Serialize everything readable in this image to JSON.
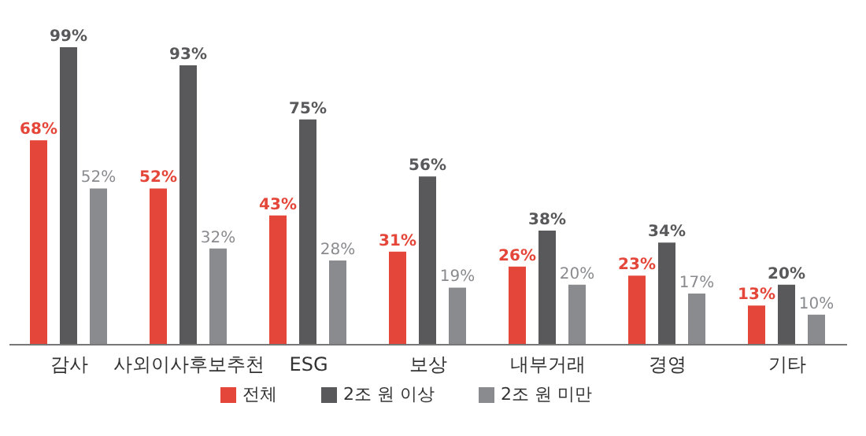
{
  "chart_data": {
    "type": "bar",
    "categories": [
      "감사",
      "사외이사후보추천",
      "ESG",
      "보상",
      "내부거래",
      "경영",
      "기타"
    ],
    "series": [
      {
        "name": "전체",
        "color": "#e4473a",
        "values": [
          68,
          52,
          43,
          31,
          26,
          23,
          13
        ],
        "value_labels": [
          "68%",
          "52%",
          "43%",
          "31%",
          "26%",
          "23%",
          "13%"
        ]
      },
      {
        "name": "2조 원 이상",
        "color": "#59595b",
        "values": [
          99,
          93,
          75,
          56,
          38,
          34,
          20
        ],
        "value_labels": [
          "99%",
          "93%",
          "75%",
          "56%",
          "38%",
          "34%",
          "20%"
        ]
      },
      {
        "name": "2조 원 미만",
        "color": "#8a8b8e",
        "values": [
          52,
          32,
          28,
          19,
          20,
          17,
          10
        ],
        "value_labels": [
          "52%",
          "32%",
          "28%",
          "19%",
          "20%",
          "17%",
          "10%"
        ]
      }
    ],
    "legend": "bottom",
    "grid": false
  }
}
